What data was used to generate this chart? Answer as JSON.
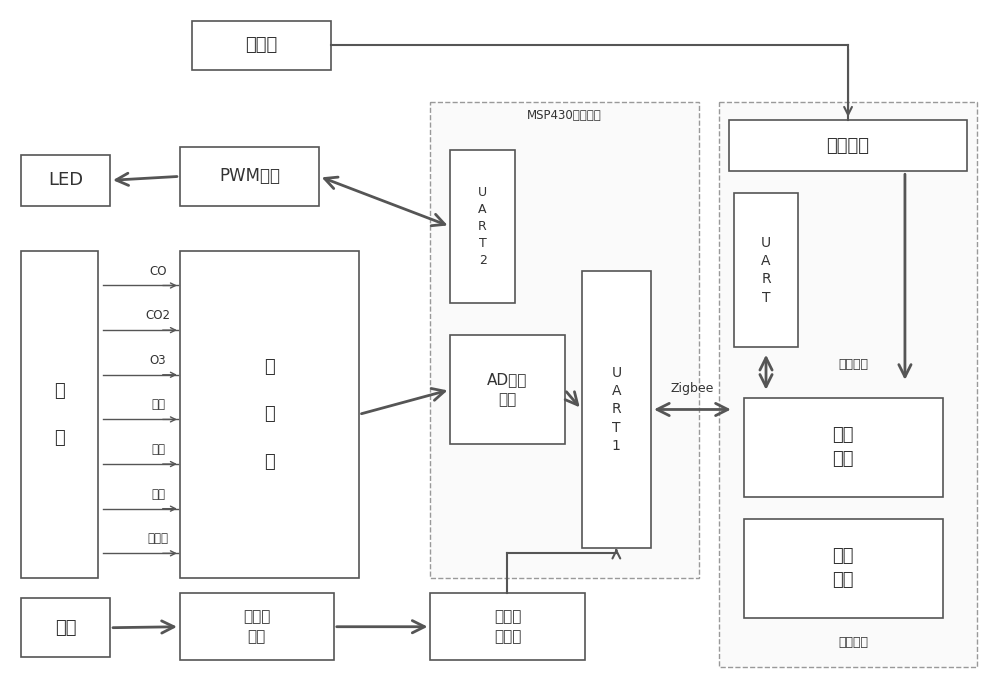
{
  "bg": "#ffffff",
  "lc": "#555555",
  "tc": "#333333",
  "figsize": [
    10.0,
    6.91
  ],
  "dpi": 100,
  "sensor_labels": [
    "CO",
    "CO2",
    "O3",
    "灰尘",
    "温度",
    "湿度",
    "紫外线"
  ]
}
